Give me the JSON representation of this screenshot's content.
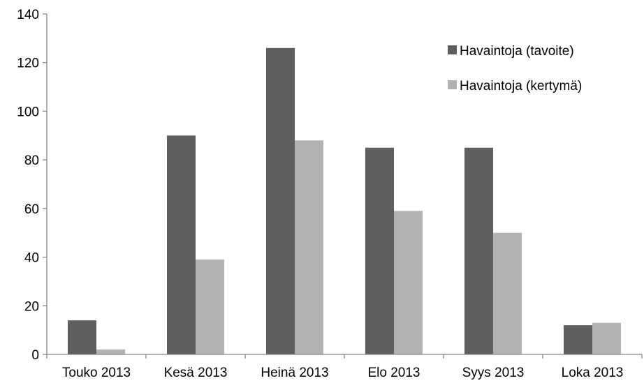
{
  "chart_data": {
    "type": "bar",
    "categories": [
      "Touko 2013",
      "Kesä 2013",
      "Heinä 2013",
      "Elo 2013",
      "Syys 2013",
      "Loka 2013"
    ],
    "series": [
      {
        "name": "Havaintoja (tavoite)",
        "color": "#5f5f5f",
        "values": [
          14,
          90,
          126,
          85,
          85,
          12
        ]
      },
      {
        "name": "Havaintoja (kertymä)",
        "color": "#b2b2b2",
        "values": [
          2,
          39,
          88,
          59,
          50,
          13
        ]
      }
    ],
    "title": "",
    "xlabel": "",
    "ylabel": "",
    "ylim": [
      0,
      140
    ],
    "yticks": [
      "0",
      "20",
      "40",
      "60",
      "80",
      "100",
      "120",
      "140"
    ],
    "grid": false,
    "legend": "top-right"
  }
}
